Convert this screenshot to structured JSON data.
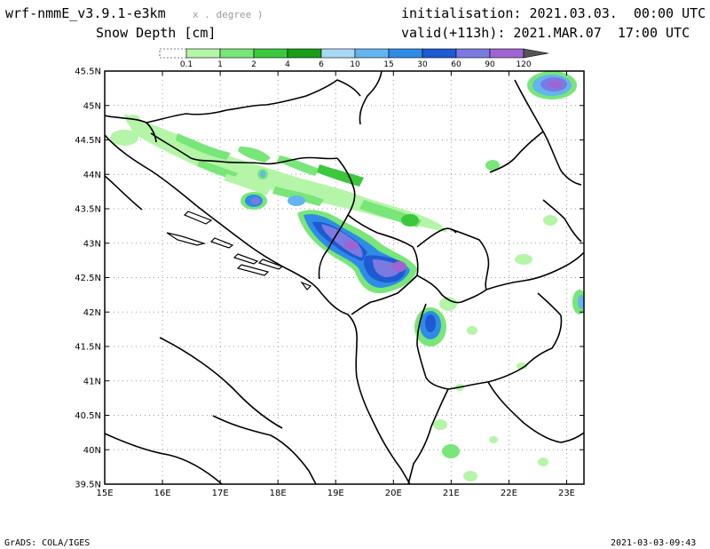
{
  "header": {
    "model": "wrf-nmmE_v3.9.1-e3km",
    "units_note": "x . degree )",
    "variable": "Snow Depth [cm]",
    "init": "initialisation: 2021.03.03.  00:00 UTC",
    "valid": "valid(+113h): 2021.MAR.07  17:00 UTC"
  },
  "colorbar": {
    "labels": [
      "0.1",
      "1",
      "2",
      "4",
      "6",
      "10",
      "15",
      "30",
      "60",
      "90",
      "120"
    ],
    "colors": [
      "#f2f2f2",
      "#b4f5a8",
      "#78e678",
      "#3cc83c",
      "#1a9e1a",
      "#a8d8f5",
      "#64b4f0",
      "#2f8ce6",
      "#1e5ad2",
      "#7a7ae0",
      "#a064d2",
      "#555555"
    ]
  },
  "axes": {
    "x_labels": [
      "15E",
      "16E",
      "17E",
      "18E",
      "19E",
      "20E",
      "21E",
      "22E",
      "23E"
    ],
    "y_labels": [
      "45.5N",
      "45N",
      "44.5N",
      "44N",
      "43.5N",
      "43N",
      "42.5N",
      "42N",
      "41.5N",
      "41N",
      "40.5N",
      "40N",
      "39.5N"
    ],
    "lon_range": [
      15,
      23.3
    ],
    "lat_range": [
      39.5,
      45.5
    ]
  },
  "footer": {
    "left": "GrADS: COLA/IGES",
    "right": "2021-03-03-09:43"
  }
}
